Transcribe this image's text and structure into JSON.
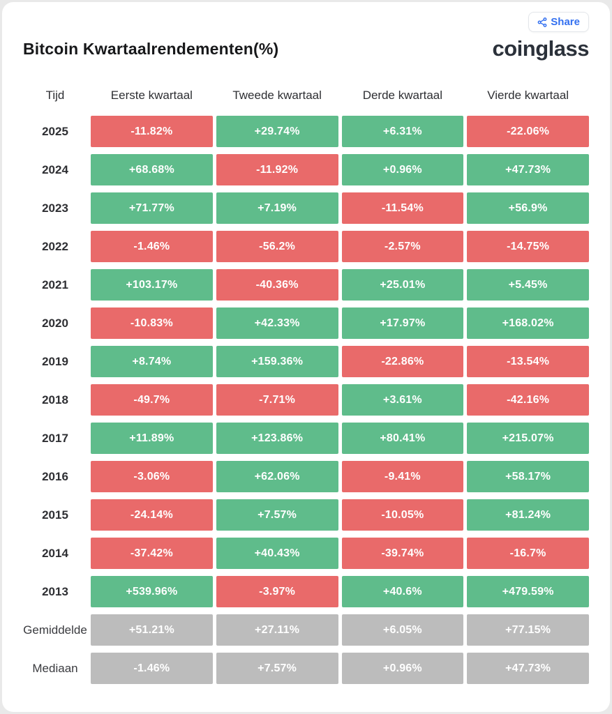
{
  "header": {
    "title": "Bitcoin Kwartaalrendementen(%)",
    "logo": "coinglass",
    "share_label": "Share"
  },
  "colors": {
    "positive": "#5fbc8b",
    "negative": "#e96a6a",
    "neutral": "#bcbcbc",
    "accent_blue": "#3370f0"
  },
  "chart_data": {
    "type": "table",
    "title": "Bitcoin Kwartaalrendementen(%)",
    "columns": [
      "Tijd",
      "Eerste kwartaal",
      "Tweede kwartaal",
      "Derde kwartaal",
      "Vierde kwartaal"
    ],
    "rows": [
      {
        "label": "2025",
        "kind": "year",
        "values": [
          "-11.82%",
          "+29.74%",
          "+6.31%",
          "-22.06%"
        ]
      },
      {
        "label": "2024",
        "kind": "year",
        "values": [
          "+68.68%",
          "-11.92%",
          "+0.96%",
          "+47.73%"
        ]
      },
      {
        "label": "2023",
        "kind": "year",
        "values": [
          "+71.77%",
          "+7.19%",
          "-11.54%",
          "+56.9%"
        ]
      },
      {
        "label": "2022",
        "kind": "year",
        "values": [
          "-1.46%",
          "-56.2%",
          "-2.57%",
          "-14.75%"
        ]
      },
      {
        "label": "2021",
        "kind": "year",
        "values": [
          "+103.17%",
          "-40.36%",
          "+25.01%",
          "+5.45%"
        ]
      },
      {
        "label": "2020",
        "kind": "year",
        "values": [
          "-10.83%",
          "+42.33%",
          "+17.97%",
          "+168.02%"
        ]
      },
      {
        "label": "2019",
        "kind": "year",
        "values": [
          "+8.74%",
          "+159.36%",
          "-22.86%",
          "-13.54%"
        ]
      },
      {
        "label": "2018",
        "kind": "year",
        "values": [
          "-49.7%",
          "-7.71%",
          "+3.61%",
          "-42.16%"
        ]
      },
      {
        "label": "2017",
        "kind": "year",
        "values": [
          "+11.89%",
          "+123.86%",
          "+80.41%",
          "+215.07%"
        ]
      },
      {
        "label": "2016",
        "kind": "year",
        "values": [
          "-3.06%",
          "+62.06%",
          "-9.41%",
          "+58.17%"
        ]
      },
      {
        "label": "2015",
        "kind": "year",
        "values": [
          "-24.14%",
          "+7.57%",
          "-10.05%",
          "+81.24%"
        ]
      },
      {
        "label": "2014",
        "kind": "year",
        "values": [
          "-37.42%",
          "+40.43%",
          "-39.74%",
          "-16.7%"
        ]
      },
      {
        "label": "2013",
        "kind": "year",
        "values": [
          "+539.96%",
          "-3.97%",
          "+40.6%",
          "+479.59%"
        ]
      },
      {
        "label": "Gemiddelde",
        "kind": "summary",
        "values": [
          "+51.21%",
          "+27.11%",
          "+6.05%",
          "+77.15%"
        ]
      },
      {
        "label": "Mediaan",
        "kind": "summary",
        "values": [
          "-1.46%",
          "+7.57%",
          "+0.96%",
          "+47.73%"
        ]
      }
    ]
  }
}
